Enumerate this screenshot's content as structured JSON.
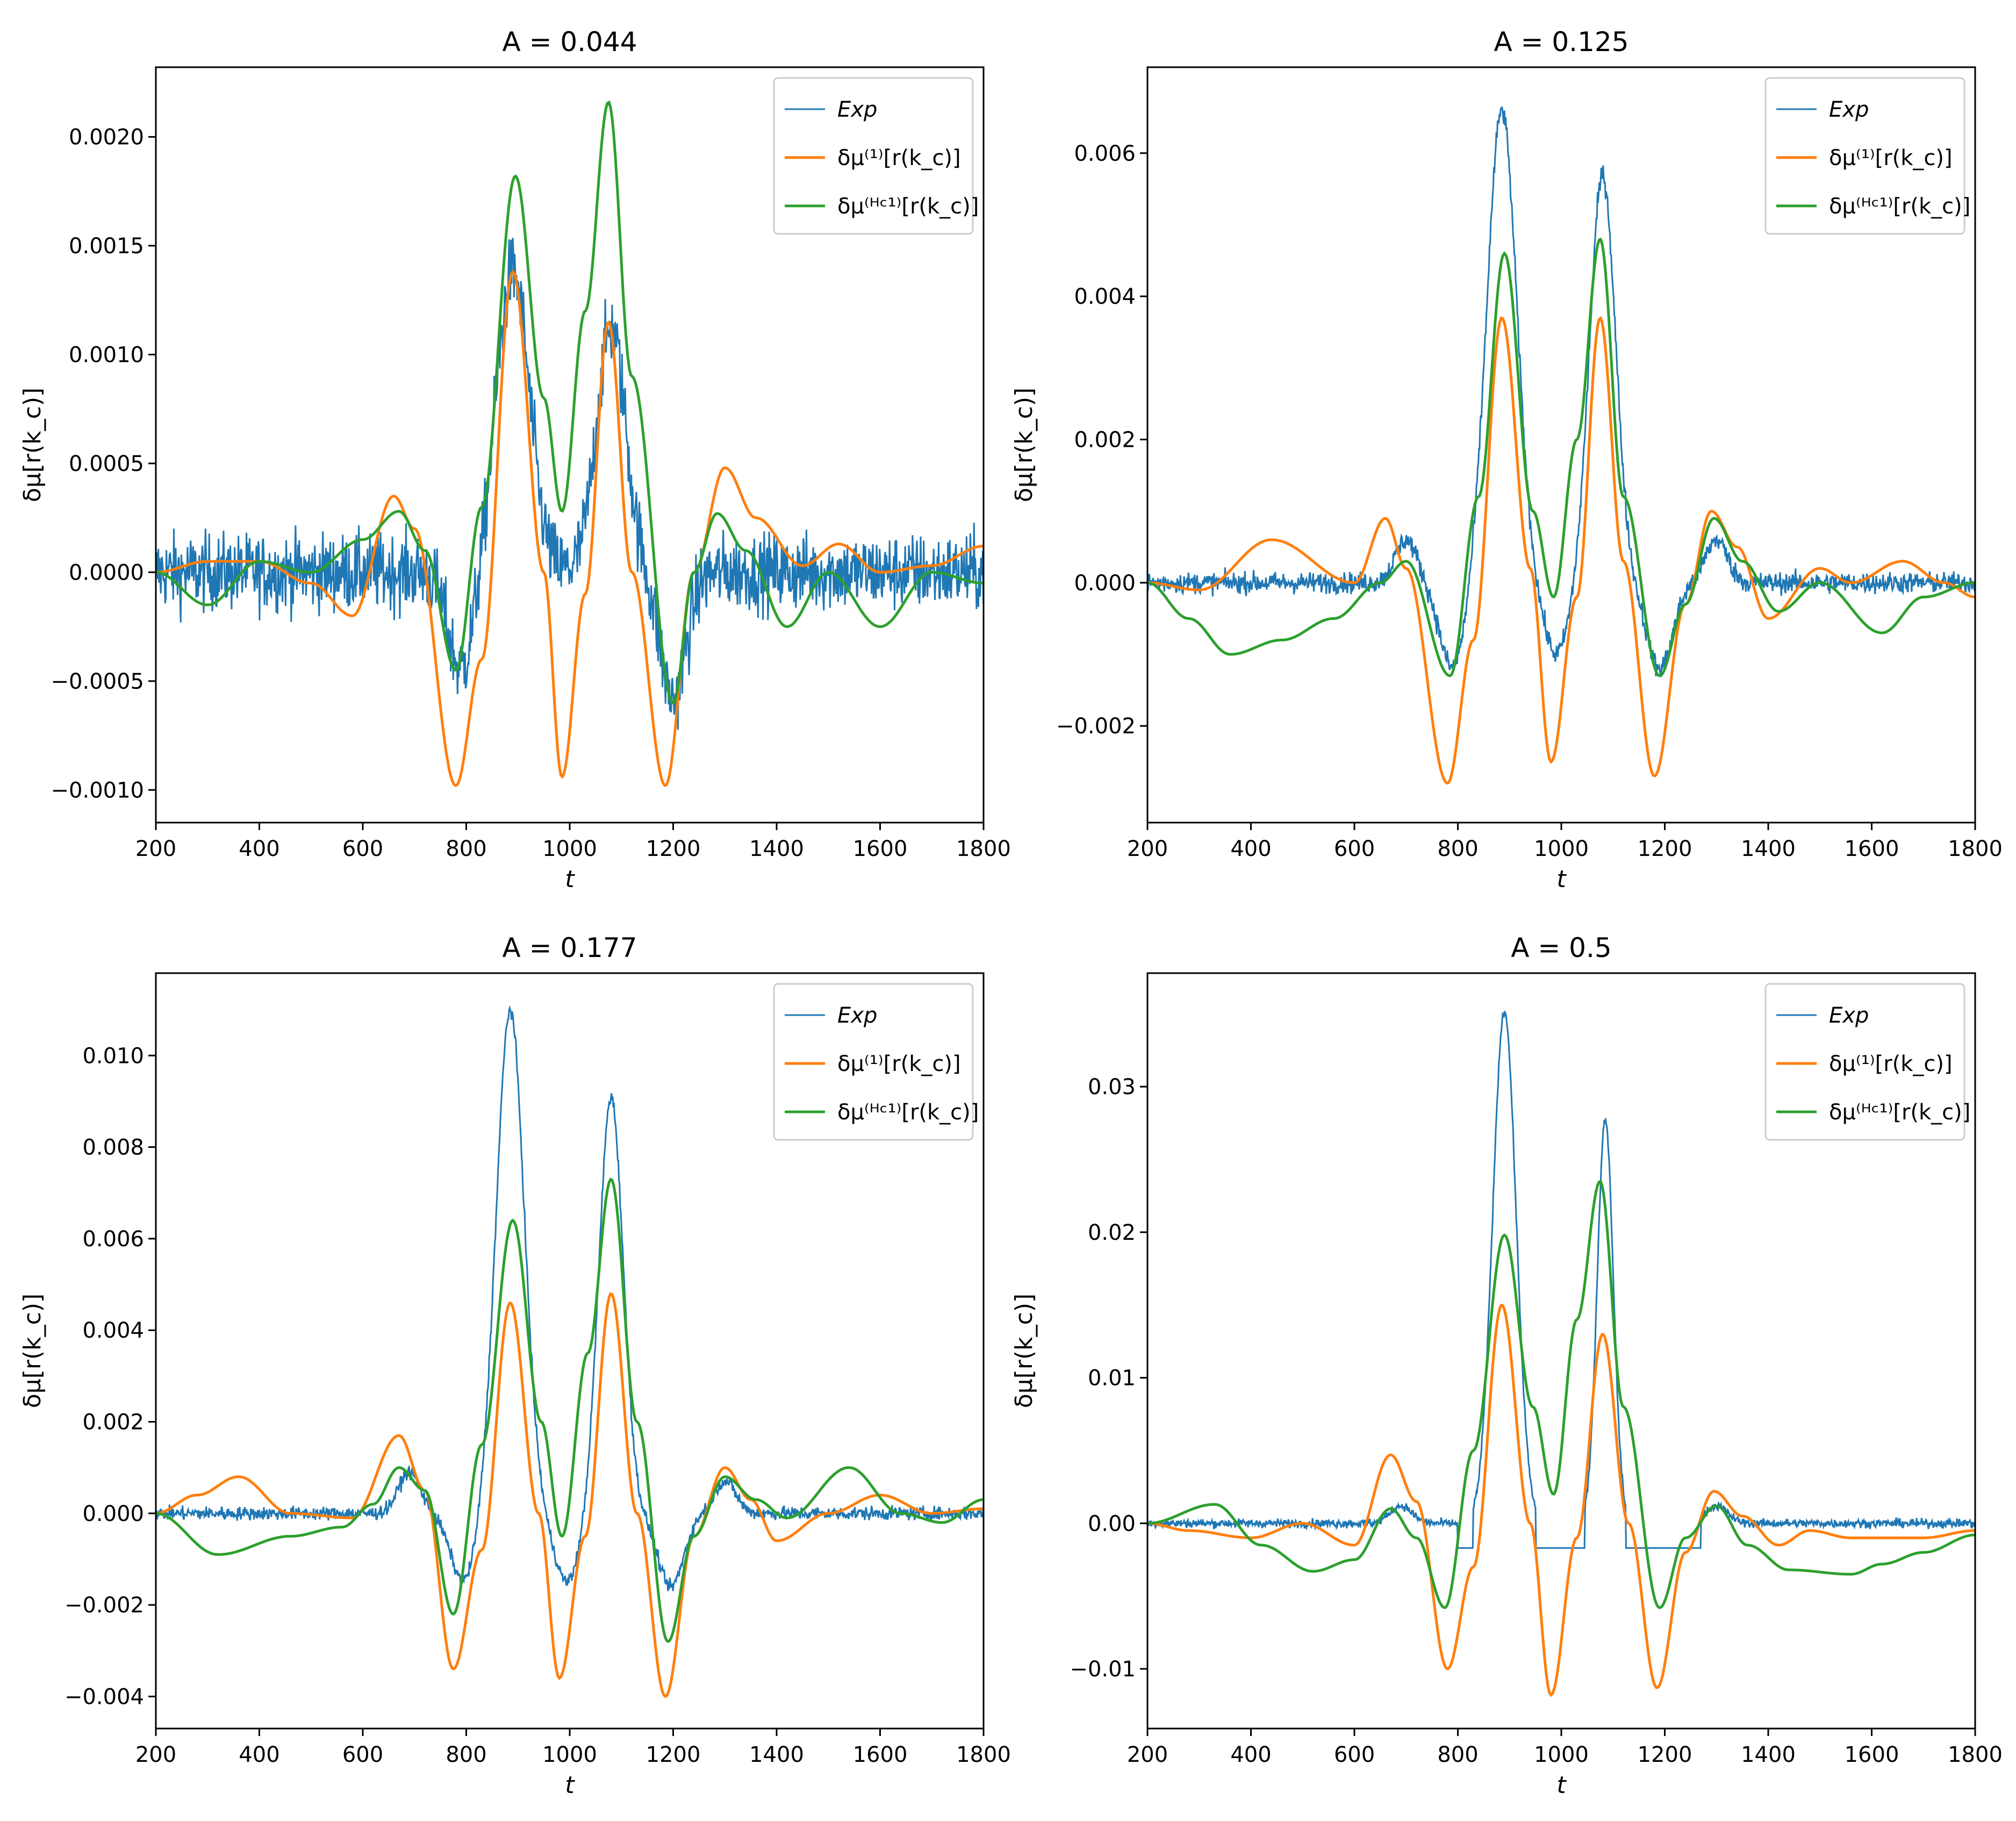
{
  "figure": {
    "description_free": true
  },
  "legend_entries": [
    "Exp",
    "δμ⁽¹⁾[r(k_c)]",
    "δμ⁽ᴴᶜ¹⁾[r(k_c)]"
  ],
  "colors": {
    "exp": "#1f77b4",
    "first": "#ff7f0e",
    "hc": "#2ca02c"
  },
  "chart_data": [
    {
      "type": "line",
      "title": "A = 0.044",
      "xlabel": "t",
      "ylabel": "δμ[r(k_c)]",
      "xlim": [
        200,
        1800
      ],
      "ylim": [
        -0.00115,
        0.00232
      ],
      "xticks": [
        200,
        400,
        600,
        800,
        1000,
        1200,
        1400,
        1600,
        1800
      ],
      "yticks": [
        -0.001,
        -0.0005,
        0.0,
        0.0005,
        0.001,
        0.0015,
        0.002
      ],
      "yticklabels": [
        "−0.0010",
        "−0.0005",
        "0.0000",
        "0.0005",
        "0.0010",
        "0.0015",
        "0.0020"
      ],
      "legend": "top-right",
      "exp": {
        "name": "Exp",
        "noise": 0.00018,
        "peaks": [
          [
            890,
            0.00138,
            45
          ],
          [
            1080,
            0.00112,
            40
          ]
        ],
        "troughs": [
          [
            790,
            -0.00045,
            35
          ],
          [
            1200,
            -0.00058,
            35
          ]
        ]
      },
      "series": [
        {
          "name": "δμ(1)[r(kc)]",
          "key": "first",
          "x": [
            200,
            300,
            400,
            500,
            580,
            660,
            700,
            780,
            830,
            890,
            950,
            985,
            1030,
            1075,
            1120,
            1185,
            1240,
            1300,
            1360,
            1450,
            1520,
            1600,
            1700,
            1800
          ],
          "values": [
            0.0,
            5e-05,
            5e-05,
            -5e-05,
            -0.0002,
            0.00035,
            0.0002,
            -0.00098,
            -0.0004,
            0.00138,
            0.0,
            -0.00094,
            -0.0001,
            0.00115,
            0.0,
            -0.00098,
            0.0,
            0.00048,
            0.00025,
            3e-05,
            0.00013,
            0.0,
            3e-05,
            0.00012
          ]
        },
        {
          "name": "δμ(HC1)[r(kc)]",
          "key": "hc",
          "x": [
            200,
            300,
            400,
            500,
            600,
            670,
            720,
            780,
            830,
            895,
            950,
            985,
            1030,
            1075,
            1120,
            1200,
            1240,
            1285,
            1340,
            1420,
            1500,
            1600,
            1700,
            1800
          ],
          "values": [
            0.0,
            -0.00015,
            5e-05,
            0.0,
            0.00015,
            0.00028,
            0.0001,
            -0.00045,
            0.0003,
            0.00182,
            0.0008,
            0.00028,
            0.0012,
            0.00216,
            0.0009,
            -0.0006,
            0.0,
            0.00027,
            0.0001,
            -0.00025,
            0.0,
            -0.00025,
            0.0,
            -5e-05
          ]
        }
      ]
    },
    {
      "type": "line",
      "title": "A = 0.125",
      "xlabel": "t",
      "ylabel": "δμ[r(k_c)]",
      "xlim": [
        200,
        1800
      ],
      "ylim": [
        -0.00335,
        0.0072
      ],
      "xticks": [
        200,
        400,
        600,
        800,
        1000,
        1200,
        1400,
        1600,
        1800
      ],
      "yticks": [
        -0.002,
        0.0,
        0.002,
        0.004,
        0.006
      ],
      "yticklabels": [
        "−0.002",
        "0.000",
        "0.002",
        "0.004",
        "0.006"
      ],
      "legend": "top-right",
      "exp": {
        "name": "Exp",
        "noise": 0.00015,
        "peaks": [
          [
            885,
            0.0066,
            40
          ],
          [
            1080,
            0.0057,
            35
          ],
          [
            700,
            0.0006,
            30
          ],
          [
            1300,
            0.0006,
            30
          ]
        ],
        "troughs": [
          [
            790,
            -0.0012,
            35
          ],
          [
            990,
            -0.001,
            35
          ],
          [
            1190,
            -0.0012,
            35
          ]
        ]
      },
      "series": [
        {
          "name": "δμ(1)[r(kc)]",
          "key": "first",
          "x": [
            200,
            300,
            440,
            600,
            660,
            700,
            780,
            830,
            885,
            940,
            980,
            1030,
            1075,
            1120,
            1180,
            1240,
            1290,
            1340,
            1400,
            1500,
            1560,
            1660,
            1740,
            1800
          ],
          "values": [
            0.0,
            -0.0001,
            0.0006,
            0.0,
            0.0009,
            0.0002,
            -0.0028,
            -0.0008,
            0.0037,
            0.0002,
            -0.0025,
            -0.0002,
            0.0037,
            0.0003,
            -0.0027,
            -0.0003,
            0.001,
            0.0005,
            -0.0005,
            0.0002,
            0.0,
            0.0003,
            0.0,
            -0.0002
          ]
        },
        {
          "name": "δμ(HC1)[r(kc)]",
          "key": "hc",
          "x": [
            200,
            280,
            360,
            460,
            560,
            650,
            700,
            785,
            840,
            890,
            945,
            985,
            1030,
            1075,
            1120,
            1190,
            1240,
            1295,
            1350,
            1420,
            1500,
            1620,
            1700,
            1800
          ],
          "values": [
            0.0,
            -0.0005,
            -0.001,
            -0.0008,
            -0.0005,
            0.0,
            0.0003,
            -0.0013,
            0.0012,
            0.0046,
            0.001,
            -0.0002,
            0.002,
            0.0048,
            0.0012,
            -0.0013,
            -0.0003,
            0.0009,
            0.0003,
            -0.0004,
            0.0,
            -0.0007,
            -0.0002,
            0.0
          ]
        }
      ]
    },
    {
      "type": "line",
      "title": "A = 0.177",
      "xlabel": "t",
      "ylabel": "δμ[r(k_c)]",
      "xlim": [
        200,
        1800
      ],
      "ylim": [
        -0.0047,
        0.0118
      ],
      "xticks": [
        200,
        400,
        600,
        800,
        1000,
        1200,
        1400,
        1600,
        1800
      ],
      "yticks": [
        -0.004,
        -0.002,
        0.0,
        0.002,
        0.004,
        0.006,
        0.008,
        0.01
      ],
      "yticklabels": [
        "−0.004",
        "−0.002",
        "0.000",
        "0.002",
        "0.004",
        "0.006",
        "0.008",
        "0.010"
      ],
      "legend": "top-right",
      "exp": {
        "name": "Exp",
        "noise": 0.00015,
        "peaks": [
          [
            885,
            0.011,
            38
          ],
          [
            1080,
            0.0091,
            33
          ],
          [
            690,
            0.0009,
            30
          ],
          [
            1300,
            0.0007,
            30
          ]
        ],
        "troughs": [
          [
            795,
            -0.0015,
            35
          ],
          [
            995,
            -0.0015,
            35
          ],
          [
            1195,
            -0.0016,
            35
          ]
        ]
      },
      "series": [
        {
          "name": "δμ(1)[r(kc)]",
          "key": "first",
          "x": [
            200,
            280,
            360,
            460,
            580,
            670,
            720,
            775,
            830,
            885,
            940,
            980,
            1030,
            1080,
            1130,
            1185,
            1240,
            1300,
            1350,
            1400,
            1500,
            1600,
            1700,
            1800
          ],
          "values": [
            0.0,
            0.0004,
            0.0008,
            0.0,
            -0.0001,
            0.0017,
            0.0005,
            -0.0034,
            -0.0008,
            0.0046,
            0.0,
            -0.0036,
            -0.0005,
            0.0048,
            0.0,
            -0.004,
            -0.0005,
            0.001,
            0.0003,
            -0.0006,
            0.0,
            0.0004,
            0.0,
            0.0001
          ]
        },
        {
          "name": "δμ(HC1)[r(kc)]",
          "key": "hc",
          "x": [
            200,
            320,
            460,
            560,
            620,
            670,
            720,
            775,
            830,
            890,
            945,
            985,
            1035,
            1080,
            1130,
            1190,
            1240,
            1300,
            1360,
            1420,
            1540,
            1640,
            1720,
            1800
          ],
          "values": [
            0.0,
            -0.0009,
            -0.0005,
            -0.0003,
            0.0002,
            0.001,
            0.0005,
            -0.0022,
            0.0015,
            0.0064,
            0.002,
            -0.0005,
            0.0035,
            0.0073,
            0.002,
            -0.0028,
            -0.0005,
            0.0008,
            0.0003,
            -0.0001,
            0.001,
            0.0,
            -0.0002,
            0.0003
          ]
        }
      ]
    },
    {
      "type": "line",
      "title": "A = 0.5",
      "xlabel": "t",
      "ylabel": "δμ[r(k_c)]",
      "xlim": [
        200,
        1800
      ],
      "ylim": [
        -0.0141,
        0.0378
      ],
      "xticks": [
        200,
        400,
        600,
        800,
        1000,
        1200,
        1400,
        1600,
        1800
      ],
      "yticks": [
        -0.01,
        0.0,
        0.01,
        0.02,
        0.03
      ],
      "yticklabels": [
        "−0.01",
        "0.00",
        "0.01",
        "0.02",
        "0.03"
      ],
      "legend": "top-right",
      "exp": {
        "name": "Exp",
        "noise": 0.0003,
        "peaks": [
          [
            890,
            0.0352,
            32
          ],
          [
            1085,
            0.0278,
            22
          ],
          [
            690,
            0.0012,
            30
          ],
          [
            1300,
            0.0012,
            30
          ]
        ],
        "troughs": [],
        "flat_ranges": [
          [
            800,
            860,
            -0.0017
          ],
          [
            930,
            1060,
            -0.0017
          ],
          [
            1115,
            1270,
            -0.0017
          ]
        ]
      },
      "series": [
        {
          "name": "δμ(1)[r(kc)]",
          "key": "first",
          "x": [
            200,
            280,
            400,
            500,
            600,
            670,
            720,
            780,
            830,
            885,
            940,
            980,
            1030,
            1080,
            1130,
            1185,
            1240,
            1295,
            1350,
            1420,
            1480,
            1560,
            1700,
            1800
          ],
          "values": [
            0.0,
            -0.0005,
            -0.001,
            0.0,
            -0.0015,
            0.0047,
            0.0015,
            -0.01,
            -0.003,
            0.015,
            0.0,
            -0.0118,
            -0.001,
            0.013,
            0.0,
            -0.0113,
            -0.002,
            0.0022,
            0.0005,
            -0.0015,
            -0.0005,
            -0.001,
            -0.001,
            -0.0005
          ]
        },
        {
          "name": "δμ(HC1)[r(kc)]",
          "key": "hc",
          "x": [
            200,
            330,
            420,
            520,
            600,
            670,
            720,
            775,
            830,
            890,
            945,
            985,
            1030,
            1075,
            1120,
            1190,
            1240,
            1300,
            1360,
            1440,
            1560,
            1620,
            1700,
            1800
          ],
          "values": [
            0.0,
            0.0013,
            -0.0015,
            -0.0033,
            -0.0025,
            0.001,
            -0.001,
            -0.0058,
            0.005,
            0.0198,
            0.008,
            0.002,
            0.014,
            0.0235,
            0.008,
            -0.0058,
            -0.001,
            0.0012,
            -0.0015,
            -0.0032,
            -0.0035,
            -0.0028,
            -0.002,
            -0.0008
          ]
        }
      ]
    }
  ]
}
